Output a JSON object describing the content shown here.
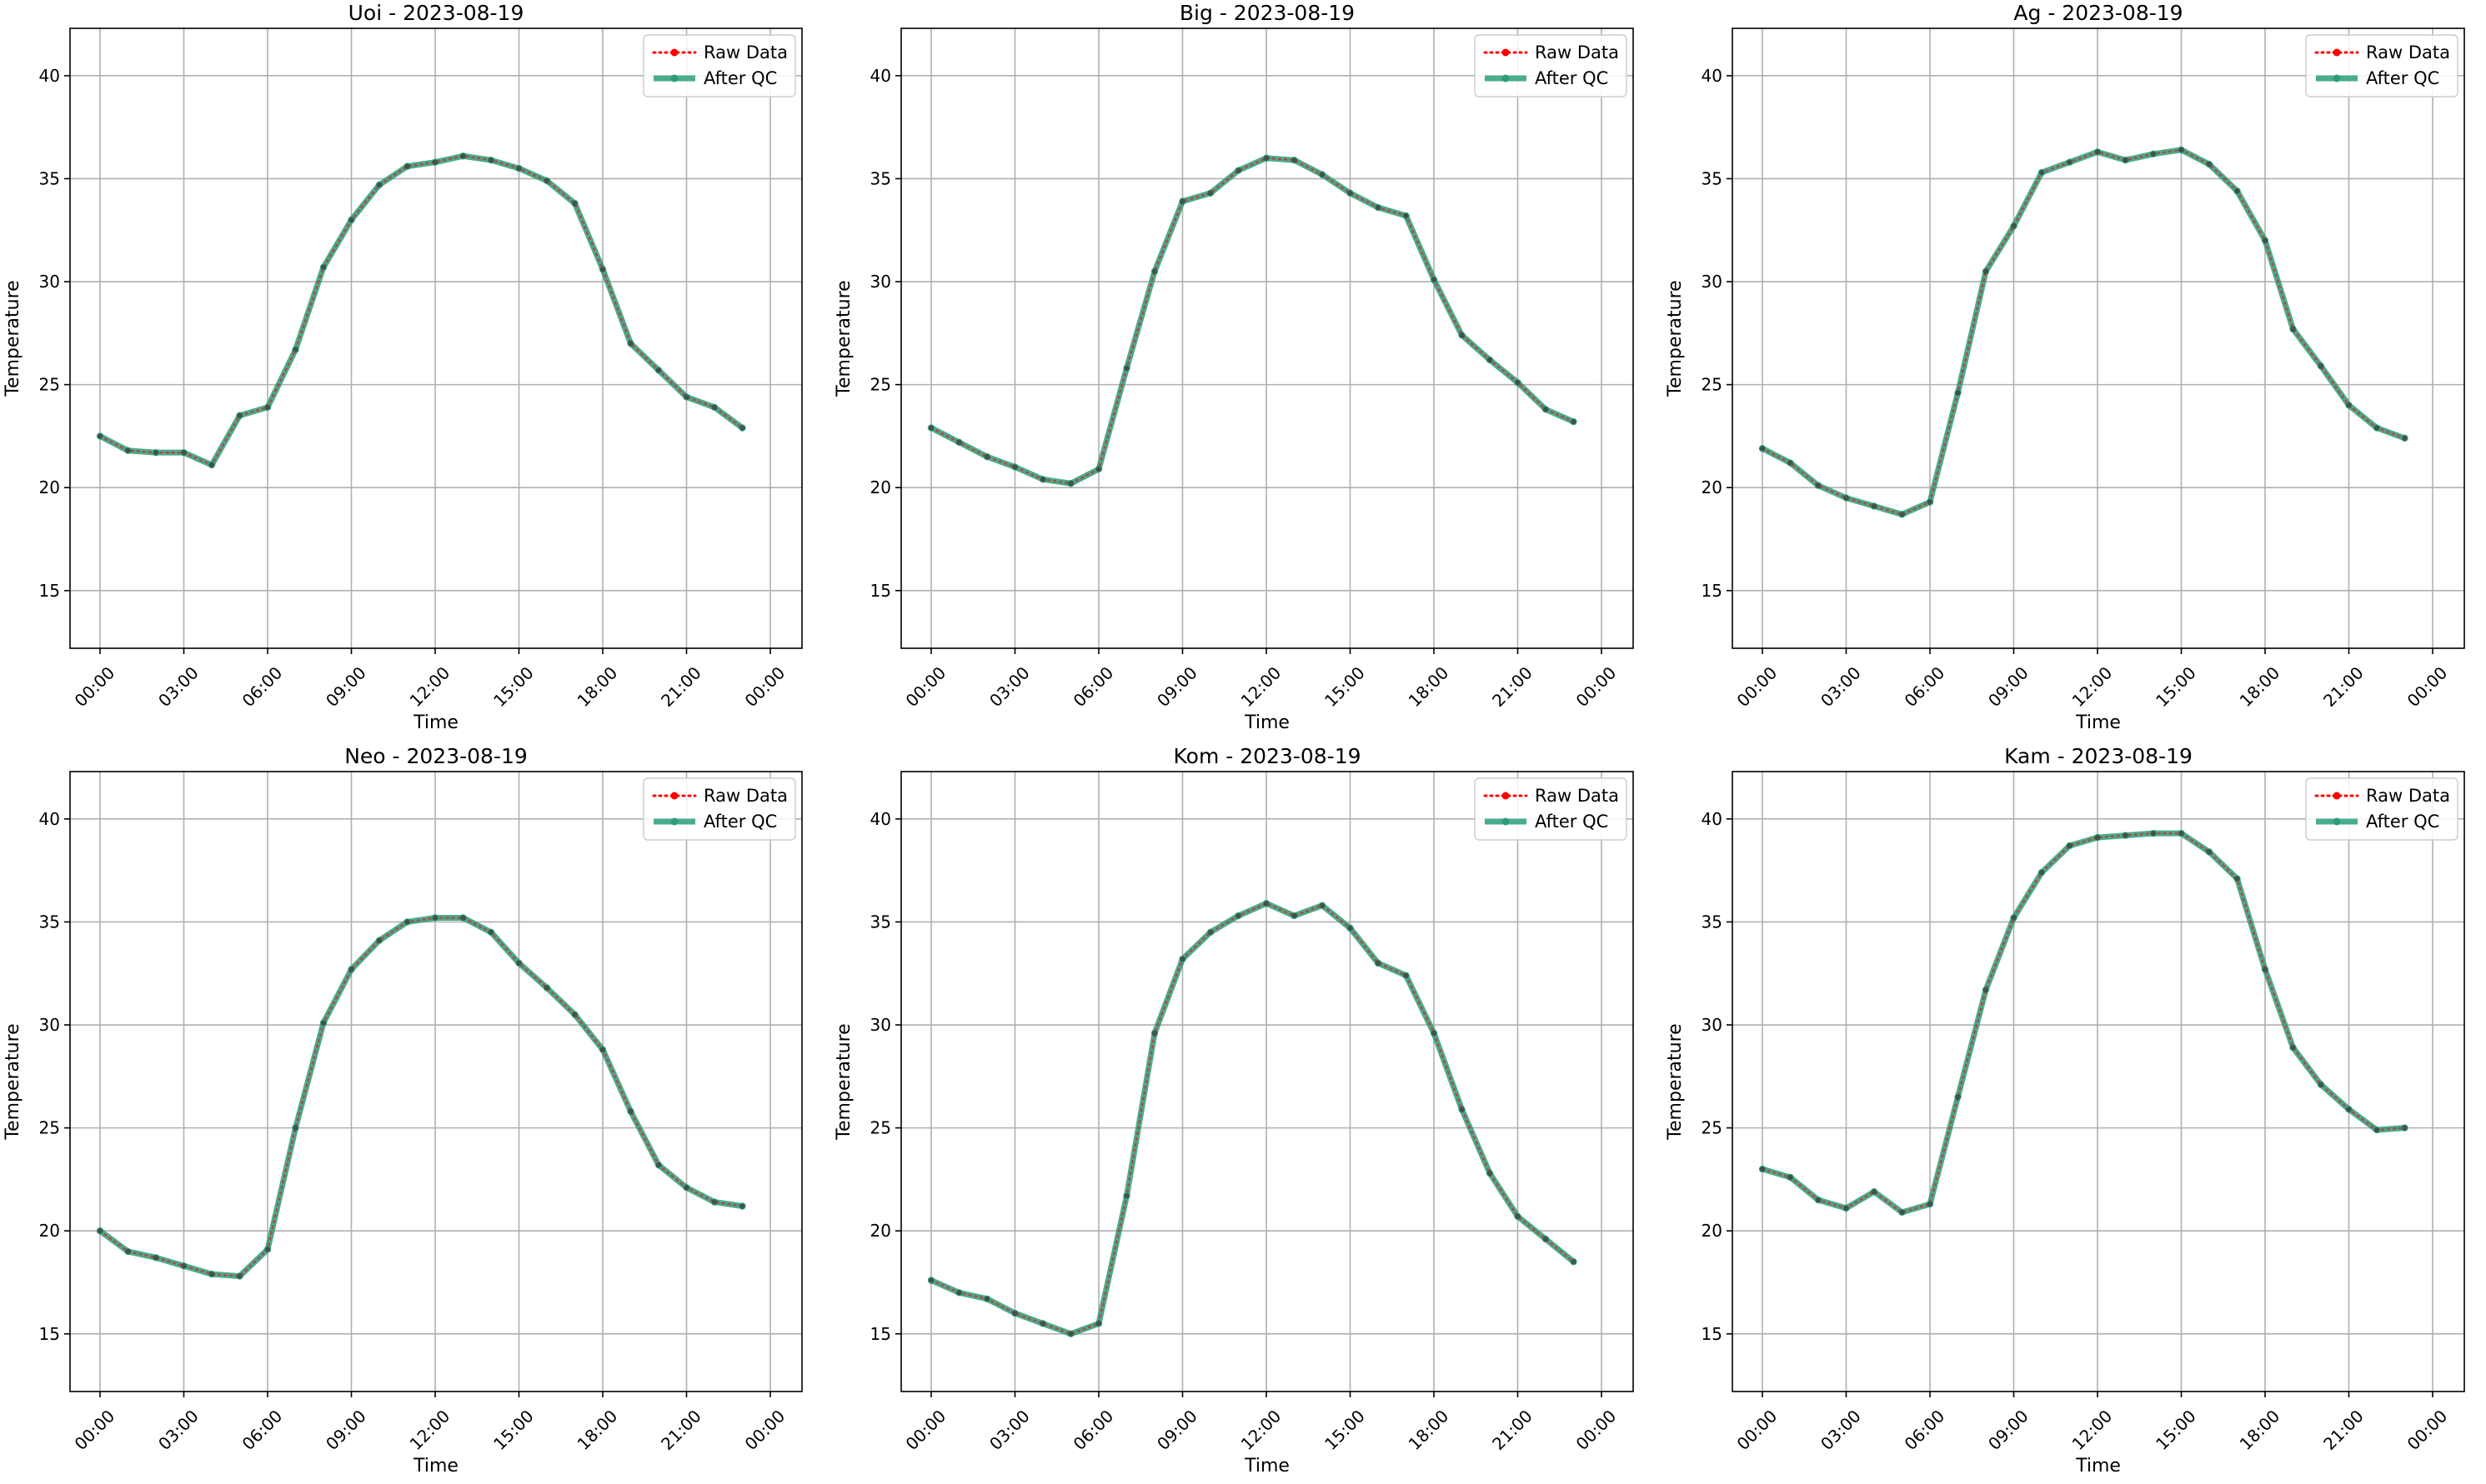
{
  "chart_data": [
    {
      "type": "line",
      "title": "Uoi - 2023-08-19",
      "xlabel": "Time",
      "ylabel": "Temperature",
      "x": [
        "00:00",
        "01:00",
        "02:00",
        "03:00",
        "04:00",
        "05:00",
        "06:00",
        "07:00",
        "08:00",
        "09:00",
        "10:00",
        "11:00",
        "12:00",
        "13:00",
        "14:00",
        "15:00",
        "16:00",
        "17:00",
        "18:00",
        "19:00",
        "20:00",
        "21:00",
        "22:00",
        "23:00"
      ],
      "xticks": [
        "00:00",
        "03:00",
        "06:00",
        "09:00",
        "12:00",
        "15:00",
        "18:00",
        "21:00",
        "00:00"
      ],
      "yticks": [
        "15",
        "20",
        "25",
        "30",
        "35",
        "40"
      ],
      "ylim": [
        12.2,
        42.3
      ],
      "grid": true,
      "legend_position": "top-right",
      "series": [
        {
          "name": "Raw Data",
          "color": "#ff0000",
          "style": "dotted",
          "values": [
            22.5,
            21.8,
            21.7,
            21.7,
            21.1,
            23.5,
            23.9,
            26.7,
            30.7,
            33.0,
            34.7,
            35.6,
            35.8,
            36.1,
            35.9,
            35.5,
            34.9,
            33.8,
            30.6,
            27.0,
            25.7,
            24.4,
            23.9,
            22.9
          ]
        },
        {
          "name": "After QC",
          "color": "#2a9d7a",
          "style": "solid",
          "values": [
            22.5,
            21.8,
            21.7,
            21.7,
            21.1,
            23.5,
            23.9,
            26.7,
            30.7,
            33.0,
            34.7,
            35.6,
            35.8,
            36.1,
            35.9,
            35.5,
            34.9,
            33.8,
            30.6,
            27.0,
            25.7,
            24.4,
            23.9,
            22.9
          ]
        }
      ]
    },
    {
      "type": "line",
      "title": "Big - 2023-08-19",
      "xlabel": "Time",
      "ylabel": "Temperature",
      "x": [
        "00:00",
        "01:00",
        "02:00",
        "03:00",
        "04:00",
        "05:00",
        "06:00",
        "07:00",
        "08:00",
        "09:00",
        "10:00",
        "11:00",
        "12:00",
        "13:00",
        "14:00",
        "15:00",
        "16:00",
        "17:00",
        "18:00",
        "19:00",
        "20:00",
        "21:00",
        "22:00",
        "23:00"
      ],
      "xticks": [
        "00:00",
        "03:00",
        "06:00",
        "09:00",
        "12:00",
        "15:00",
        "18:00",
        "21:00",
        "00:00"
      ],
      "yticks": [
        "15",
        "20",
        "25",
        "30",
        "35",
        "40"
      ],
      "ylim": [
        12.2,
        42.3
      ],
      "grid": true,
      "legend_position": "top-right",
      "series": [
        {
          "name": "Raw Data",
          "color": "#ff0000",
          "style": "dotted",
          "values": [
            22.9,
            22.2,
            21.5,
            21.0,
            20.4,
            20.2,
            20.9,
            25.8,
            30.5,
            33.9,
            34.3,
            35.4,
            36.0,
            35.9,
            35.2,
            34.3,
            33.6,
            33.2,
            30.1,
            27.4,
            26.2,
            25.1,
            23.8,
            23.2
          ]
        },
        {
          "name": "After QC",
          "color": "#2a9d7a",
          "style": "solid",
          "values": [
            22.9,
            22.2,
            21.5,
            21.0,
            20.4,
            20.2,
            20.9,
            25.8,
            30.5,
            33.9,
            34.3,
            35.4,
            36.0,
            35.9,
            35.2,
            34.3,
            33.6,
            33.2,
            30.1,
            27.4,
            26.2,
            25.1,
            23.8,
            23.2
          ]
        }
      ]
    },
    {
      "type": "line",
      "title": "Ag - 2023-08-19",
      "xlabel": "Time",
      "ylabel": "Temperature",
      "x": [
        "00:00",
        "01:00",
        "02:00",
        "03:00",
        "04:00",
        "05:00",
        "06:00",
        "07:00",
        "08:00",
        "09:00",
        "10:00",
        "11:00",
        "12:00",
        "13:00",
        "14:00",
        "15:00",
        "16:00",
        "17:00",
        "18:00",
        "19:00",
        "20:00",
        "21:00",
        "22:00",
        "23:00"
      ],
      "xticks": [
        "00:00",
        "03:00",
        "06:00",
        "09:00",
        "12:00",
        "15:00",
        "18:00",
        "21:00",
        "00:00"
      ],
      "yticks": [
        "15",
        "20",
        "25",
        "30",
        "35",
        "40"
      ],
      "ylim": [
        12.2,
        42.3
      ],
      "grid": true,
      "legend_position": "top-right",
      "series": [
        {
          "name": "Raw Data",
          "color": "#ff0000",
          "style": "dotted",
          "values": [
            21.9,
            21.2,
            20.1,
            19.5,
            19.1,
            18.7,
            19.3,
            24.6,
            30.5,
            32.7,
            35.3,
            35.8,
            36.3,
            35.9,
            36.2,
            36.4,
            35.7,
            34.4,
            32.0,
            27.7,
            25.9,
            24.0,
            22.9,
            22.4
          ]
        },
        {
          "name": "After QC",
          "color": "#2a9d7a",
          "style": "solid",
          "values": [
            21.9,
            21.2,
            20.1,
            19.5,
            19.1,
            18.7,
            19.3,
            24.6,
            30.5,
            32.7,
            35.3,
            35.8,
            36.3,
            35.9,
            36.2,
            36.4,
            35.7,
            34.4,
            32.0,
            27.7,
            25.9,
            24.0,
            22.9,
            22.4
          ]
        }
      ]
    },
    {
      "type": "line",
      "title": "Neo - 2023-08-19",
      "xlabel": "Time",
      "ylabel": "Temperature",
      "x": [
        "00:00",
        "01:00",
        "02:00",
        "03:00",
        "04:00",
        "05:00",
        "06:00",
        "07:00",
        "08:00",
        "09:00",
        "10:00",
        "11:00",
        "12:00",
        "13:00",
        "14:00",
        "15:00",
        "16:00",
        "17:00",
        "18:00",
        "19:00",
        "20:00",
        "21:00",
        "22:00",
        "23:00"
      ],
      "xticks": [
        "00:00",
        "03:00",
        "06:00",
        "09:00",
        "12:00",
        "15:00",
        "18:00",
        "21:00",
        "00:00"
      ],
      "yticks": [
        "15",
        "20",
        "25",
        "30",
        "35",
        "40"
      ],
      "ylim": [
        12.2,
        42.3
      ],
      "grid": true,
      "legend_position": "top-right",
      "series": [
        {
          "name": "Raw Data",
          "color": "#ff0000",
          "style": "dotted",
          "values": [
            20.0,
            19.0,
            18.7,
            18.3,
            17.9,
            17.8,
            19.1,
            25.0,
            30.1,
            32.7,
            34.1,
            35.0,
            35.2,
            35.2,
            34.5,
            33.0,
            31.8,
            30.5,
            28.8,
            25.8,
            23.2,
            22.1,
            21.4,
            21.2
          ]
        },
        {
          "name": "After QC",
          "color": "#2a9d7a",
          "style": "solid",
          "values": [
            20.0,
            19.0,
            18.7,
            18.3,
            17.9,
            17.8,
            19.1,
            25.0,
            30.1,
            32.7,
            34.1,
            35.0,
            35.2,
            35.2,
            34.5,
            33.0,
            31.8,
            30.5,
            28.8,
            25.8,
            23.2,
            22.1,
            21.4,
            21.2
          ]
        }
      ]
    },
    {
      "type": "line",
      "title": "Kom - 2023-08-19",
      "xlabel": "Time",
      "ylabel": "Temperature",
      "x": [
        "00:00",
        "01:00",
        "02:00",
        "03:00",
        "04:00",
        "05:00",
        "06:00",
        "07:00",
        "08:00",
        "09:00",
        "10:00",
        "11:00",
        "12:00",
        "13:00",
        "14:00",
        "15:00",
        "16:00",
        "17:00",
        "18:00",
        "19:00",
        "20:00",
        "21:00",
        "22:00",
        "23:00"
      ],
      "xticks": [
        "00:00",
        "03:00",
        "06:00",
        "09:00",
        "12:00",
        "15:00",
        "18:00",
        "21:00",
        "00:00"
      ],
      "yticks": [
        "15",
        "20",
        "25",
        "30",
        "35",
        "40"
      ],
      "ylim": [
        12.2,
        42.3
      ],
      "grid": true,
      "legend_position": "top-right",
      "series": [
        {
          "name": "Raw Data",
          "color": "#ff0000",
          "style": "dotted",
          "values": [
            17.6,
            17.0,
            16.7,
            16.0,
            15.5,
            15.0,
            15.5,
            21.7,
            29.6,
            33.2,
            34.5,
            35.3,
            35.9,
            35.3,
            35.8,
            34.7,
            33.0,
            32.4,
            29.6,
            25.9,
            22.8,
            20.7,
            19.6,
            18.5
          ]
        },
        {
          "name": "After QC",
          "color": "#2a9d7a",
          "style": "solid",
          "values": [
            17.6,
            17.0,
            16.7,
            16.0,
            15.5,
            15.0,
            15.5,
            21.7,
            29.6,
            33.2,
            34.5,
            35.3,
            35.9,
            35.3,
            35.8,
            34.7,
            33.0,
            32.4,
            29.6,
            25.9,
            22.8,
            20.7,
            19.6,
            18.5
          ]
        }
      ]
    },
    {
      "type": "line",
      "title": "Kam - 2023-08-19",
      "xlabel": "Time",
      "ylabel": "Temperature",
      "x": [
        "00:00",
        "01:00",
        "02:00",
        "03:00",
        "04:00",
        "05:00",
        "06:00",
        "07:00",
        "08:00",
        "09:00",
        "10:00",
        "11:00",
        "12:00",
        "13:00",
        "14:00",
        "15:00",
        "16:00",
        "17:00",
        "18:00",
        "19:00",
        "20:00",
        "21:00",
        "22:00",
        "23:00"
      ],
      "xticks": [
        "00:00",
        "03:00",
        "06:00",
        "09:00",
        "12:00",
        "15:00",
        "18:00",
        "21:00",
        "00:00"
      ],
      "yticks": [
        "15",
        "20",
        "25",
        "30",
        "35",
        "40"
      ],
      "ylim": [
        12.2,
        42.3
      ],
      "grid": true,
      "legend_position": "top-right",
      "series": [
        {
          "name": "Raw Data",
          "color": "#ff0000",
          "style": "dotted",
          "values": [
            23.0,
            22.6,
            21.5,
            21.1,
            21.9,
            20.9,
            21.3,
            26.5,
            31.7,
            35.2,
            37.4,
            38.7,
            39.1,
            39.2,
            39.3,
            39.3,
            38.4,
            37.1,
            32.7,
            28.9,
            27.1,
            25.9,
            24.9,
            25.0
          ]
        },
        {
          "name": "After QC",
          "color": "#2a9d7a",
          "style": "solid",
          "values": [
            23.0,
            22.6,
            21.5,
            21.1,
            21.9,
            20.9,
            21.3,
            26.5,
            31.7,
            35.2,
            37.4,
            38.7,
            39.1,
            39.2,
            39.3,
            39.3,
            38.4,
            37.1,
            32.7,
            28.9,
            27.1,
            25.9,
            24.9,
            25.0
          ]
        }
      ]
    }
  ]
}
